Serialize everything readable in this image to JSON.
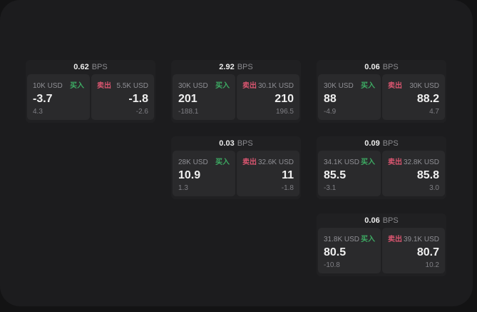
{
  "page": {
    "outer_bg": "#131314",
    "panel_bg": "#1c1c1e",
    "card_bg": "#202022",
    "subpanel_bg": "#2a2a2c"
  },
  "colors": {
    "buy": "#3dab63",
    "sell": "#d8556f",
    "value_text": "#f0f0f0",
    "muted_text": "#8a8a8e"
  },
  "labels": {
    "bps_suffix": "BPS",
    "buy": "买入",
    "sell": "卖出"
  },
  "cards": [
    {
      "col": 0,
      "row": 0,
      "bps": "0.62",
      "buy": {
        "amount": "10K USD",
        "value": "-3.7",
        "sub": "4.3"
      },
      "sell": {
        "amount": "5.5K USD",
        "value": "-1.8",
        "sub": "-2.6"
      }
    },
    {
      "col": 1,
      "row": 0,
      "bps": "2.92",
      "buy": {
        "amount": "30K USD",
        "value": "201",
        "sub": "-188.1"
      },
      "sell": {
        "amount": "30.1K USD",
        "value": "210",
        "sub": "196.5"
      }
    },
    {
      "col": 2,
      "row": 0,
      "bps": "0.06",
      "buy": {
        "amount": "30K USD",
        "value": "88",
        "sub": "-4.9"
      },
      "sell": {
        "amount": "30K USD",
        "value": "88.2",
        "sub": "4.7"
      }
    },
    {
      "col": 1,
      "row": 1,
      "bps": "0.03",
      "buy": {
        "amount": "28K USD",
        "value": "10.9",
        "sub": "1.3"
      },
      "sell": {
        "amount": "32.6K USD",
        "value": "11",
        "sub": "-1.8"
      }
    },
    {
      "col": 2,
      "row": 1,
      "bps": "0.09",
      "buy": {
        "amount": "34.1K USD",
        "value": "85.5",
        "sub": "-3.1"
      },
      "sell": {
        "amount": "32.8K USD",
        "value": "85.8",
        "sub": "3.0"
      }
    },
    {
      "col": 2,
      "row": 2,
      "bps": "0.06",
      "buy": {
        "amount": "31.8K USD",
        "value": "80.5",
        "sub": "-10.8"
      },
      "sell": {
        "amount": "39.1K USD",
        "value": "80.7",
        "sub": "10.2"
      }
    }
  ]
}
